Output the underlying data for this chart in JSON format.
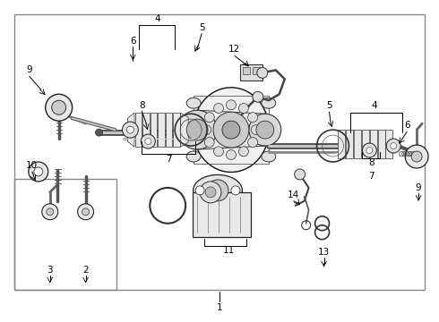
{
  "bg": "#ffffff",
  "fg": "#000000",
  "gray1": "#333333",
  "gray2": "#666666",
  "gray3": "#999999",
  "gray4": "#cccccc",
  "fig_w": 4.9,
  "fig_h": 3.6,
  "dpi": 100,
  "border": "#888888",
  "lw_border": 1.0,
  "lw_part": 0.8,
  "lw_thick": 1.5,
  "font_size": 7.5
}
